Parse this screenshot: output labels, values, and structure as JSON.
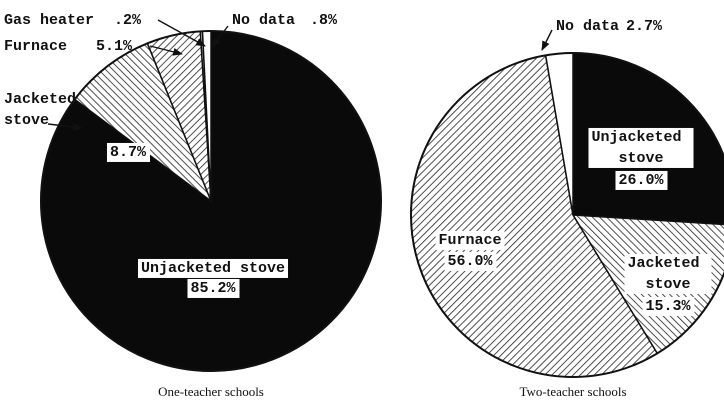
{
  "chart_data": [
    {
      "type": "pie",
      "title": "One-teacher schools",
      "categories": [
        "Unjacketed stove",
        "Jacketed stove",
        "Furnace",
        "Gas heater",
        "No data"
      ],
      "values": [
        85.2,
        8.7,
        5.1,
        0.2,
        0.8
      ],
      "value_labels": [
        "85.2%",
        "8.7%",
        "5.1%",
        ".2%",
        ".8%"
      ],
      "colors": [
        "#0a0a0a",
        "#ffffff",
        "#ffffff",
        "#ffffff",
        "#ffffff"
      ],
      "patterns": [
        "solid",
        "hatch-back",
        "hatch-fwd",
        "solid",
        "solid"
      ]
    },
    {
      "type": "pie",
      "title": "Two-teacher schools",
      "categories": [
        "Unjacketed stove",
        "Jacketed stove",
        "Furnace",
        "No data"
      ],
      "values": [
        26.0,
        15.3,
        56.0,
        2.7
      ],
      "value_labels": [
        "26.0%",
        "15.3%",
        "56.0%",
        "2.7%"
      ],
      "colors": [
        "#0a0a0a",
        "#ffffff",
        "#ffffff",
        "#ffffff"
      ],
      "patterns": [
        "solid",
        "hatch-back",
        "hatch-fwd",
        "solid"
      ]
    }
  ]
}
